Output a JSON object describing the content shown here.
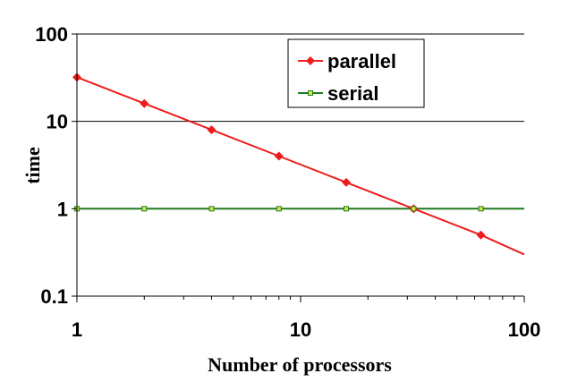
{
  "chart_data": {
    "type": "line",
    "xscale": "log",
    "yscale": "log",
    "xlim": [
      1,
      100
    ],
    "ylim": [
      0.1,
      100
    ],
    "xlabel": "Number of processors",
    "ylabel": "time",
    "xticks": [
      "1",
      "10",
      "100"
    ],
    "yticks": [
      "100",
      "10",
      "1",
      "0.1"
    ],
    "grid": "horizontal major gridlines",
    "legend_position": "top-right",
    "series": [
      {
        "name": "parallel",
        "color": "#ee1c1c",
        "marker": "diamond",
        "x": [
          1,
          2,
          4,
          8,
          16,
          32,
          64
        ],
        "y": [
          32,
          16,
          8,
          4,
          2,
          1,
          0.5
        ],
        "line_extends_to": {
          "x": 100,
          "y": 0.3
        }
      },
      {
        "name": "serial",
        "color": "#1f7a1f",
        "marker": "square",
        "marker_fill": "#d4e84c",
        "x": [
          1,
          2,
          4,
          8,
          16,
          32,
          64
        ],
        "y": [
          1,
          1,
          1,
          1,
          1,
          1,
          1
        ],
        "line_extends_to": {
          "x": 100,
          "y": 1
        }
      }
    ]
  }
}
